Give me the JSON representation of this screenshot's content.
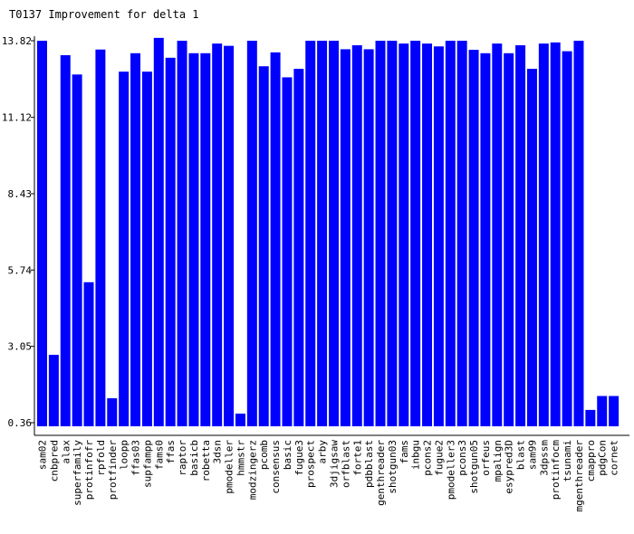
{
  "chart_data": {
    "type": "bar",
    "title": "T0137 Improvement for delta 1",
    "xlabel": "",
    "ylabel": "",
    "ylim": [
      0.36,
      13.82
    ],
    "yticks": [
      0.36,
      3.05,
      5.74,
      8.43,
      11.12,
      13.82
    ],
    "grid": false,
    "bar_color": "#0000ff",
    "categories": [
      "sam02",
      "cnbpred",
      "alax",
      "superfamily",
      "protinfofr",
      "rpfold",
      "protfinder",
      "loopp",
      "ffas03",
      "supfampp",
      "fams0",
      "ffas",
      "raptor",
      "basicb",
      "robetta",
      "3dsn",
      "pmodeller",
      "hmmstr",
      "modzingerz",
      "pcomb",
      "consensus",
      "basic",
      "fugue3",
      "prospect",
      "arby",
      "3djigsaw",
      "orfblast",
      "forte1",
      "pdbblast",
      "genthreader",
      "shotgun03",
      "fams",
      "inbgu",
      "pcons2",
      "fugue2",
      "pmodeller3",
      "pcons3",
      "shotgun05",
      "orfeus",
      "mpalign",
      "esypred3D",
      "blast",
      "sam99",
      "3dpssm",
      "protinfocm",
      "tsunami",
      "mgenthreader",
      "cmappro",
      "pdgCon",
      "cornet"
    ],
    "values": [
      13.82,
      2.75,
      13.31,
      12.63,
      5.31,
      13.51,
      1.22,
      12.73,
      13.38,
      12.73,
      13.92,
      13.22,
      13.82,
      13.38,
      13.38,
      13.72,
      13.64,
      0.68,
      13.82,
      12.92,
      13.41,
      12.53,
      12.83,
      13.82,
      13.82,
      13.82,
      13.52,
      13.66,
      13.52,
      13.82,
      13.82,
      13.72,
      13.82,
      13.72,
      13.62,
      13.82,
      13.82,
      13.5,
      13.38,
      13.72,
      13.38,
      13.66,
      12.83,
      13.72,
      13.76,
      13.45,
      13.82,
      0.81,
      1.3,
      1.3
    ]
  }
}
